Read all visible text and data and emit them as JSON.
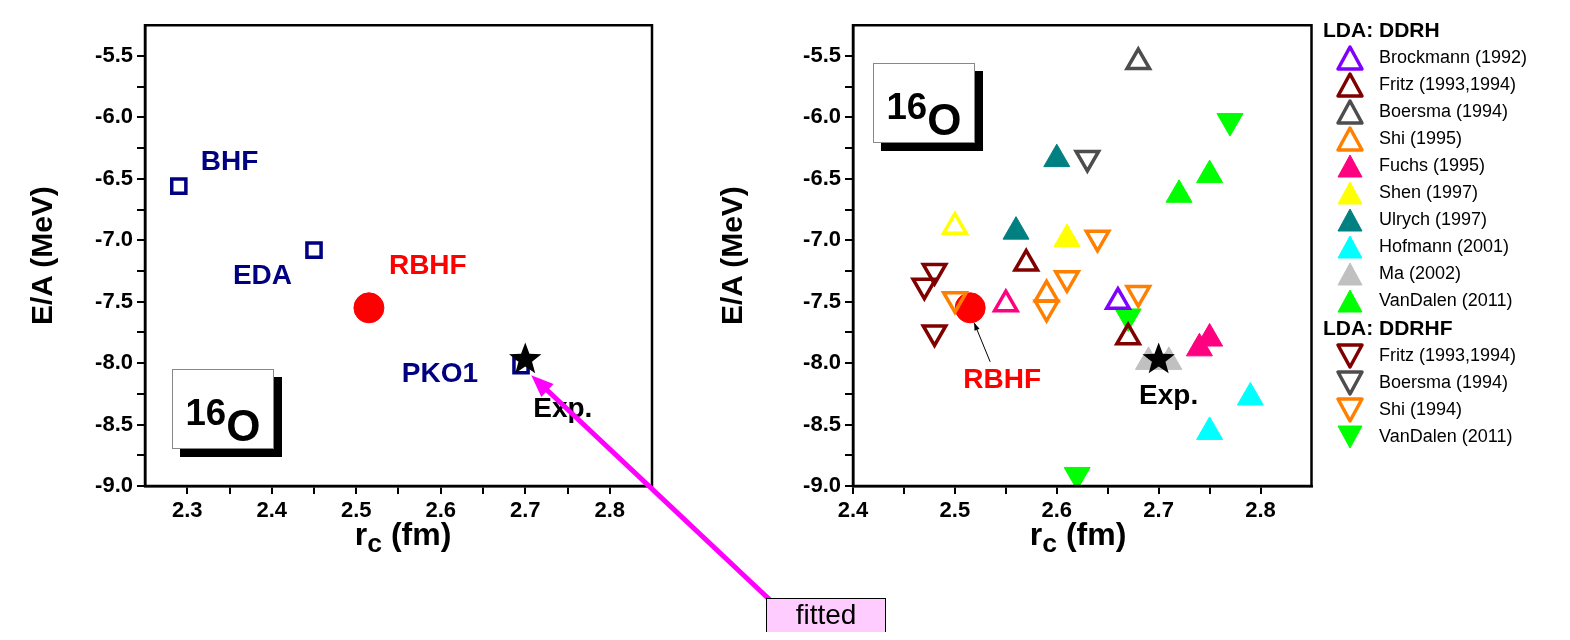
{
  "chart_data": [
    {
      "type": "scatter",
      "xlabel": "r$_{c}$ (fm)",
      "ylabel": "E/A (MeV)",
      "xlim": [
        2.25,
        2.85
      ],
      "xticks": [
        {
          "value": 2.3,
          "label": "2.3"
        },
        {
          "value": 2.35,
          "label": null
        },
        {
          "value": 2.4,
          "label": "2.4"
        },
        {
          "value": 2.45,
          "label": null
        },
        {
          "value": 2.5,
          "label": "2.5"
        },
        {
          "value": 2.55,
          "label": null
        },
        {
          "value": 2.6,
          "label": "2.6"
        },
        {
          "value": 2.65,
          "label": null
        },
        {
          "value": 2.7,
          "label": "2.7"
        },
        {
          "value": 2.75,
          "label": null
        },
        {
          "value": 2.8,
          "label": "2.8"
        }
      ],
      "ylim": [
        -9.0,
        -5.25
      ],
      "yticks": [
        {
          "value": -9.0,
          "label": "-9.0"
        },
        {
          "value": -8.75,
          "label": null
        },
        {
          "value": -8.5,
          "label": "-8.5"
        },
        {
          "value": -8.25,
          "label": null
        },
        {
          "value": -8.0,
          "label": "-8.0"
        },
        {
          "value": -7.75,
          "label": null
        },
        {
          "value": -7.5,
          "label": "-7.5"
        },
        {
          "value": -7.25,
          "label": null
        },
        {
          "value": -7.0,
          "label": "-7.0"
        },
        {
          "value": -6.75,
          "label": null
        },
        {
          "value": -6.5,
          "label": "-6.5"
        },
        {
          "value": -6.25,
          "label": null
        },
        {
          "value": -6.0,
          "label": "-6.0"
        },
        {
          "value": -5.75,
          "label": null
        },
        {
          "value": -5.5,
          "label": "-5.5"
        }
      ],
      "series": [
        {
          "color": "#000080",
          "marker": "square-open",
          "x": [
            2.29,
            2.45,
            2.695
          ],
          "values": [
            -6.56,
            -7.08,
            -8.02
          ]
        },
        {
          "color": "#ff0000",
          "marker": "circle",
          "x": [
            2.515
          ],
          "values": [
            -7.55
          ]
        },
        {
          "color": "#000000",
          "marker": "star",
          "x": [
            2.7
          ],
          "values": [
            -7.97
          ]
        }
      ],
      "annotations": [
        "$^{16}$O",
        {
          "text": "BHF",
          "x": 2.29,
          "y": -6.56
        },
        {
          "text": "EDA",
          "x": 2.45,
          "y": -7.08
        },
        {
          "text": "RBHF",
          "x": 2.515,
          "y": -7.55
        },
        {
          "text": "PKO1",
          "x": 2.695,
          "y": -8.02
        },
        {
          "text": "Exp.",
          "x": 2.7,
          "y": -7.97
        },
        "fitted"
      ]
    },
    {
      "type": "scatter",
      "xlabel": "r$_{c}$ (fm)",
      "ylabel": "E/A (MeV)",
      "xlim": [
        2.4,
        2.85
      ],
      "xticks": [
        {
          "value": 2.4,
          "label": "2.4"
        },
        {
          "value": 2.45,
          "label": null
        },
        {
          "value": 2.5,
          "label": "2.5"
        },
        {
          "value": 2.55,
          "label": null
        },
        {
          "value": 2.6,
          "label": "2.6"
        },
        {
          "value": 2.65,
          "label": null
        },
        {
          "value": 2.7,
          "label": "2.7"
        },
        {
          "value": 2.75,
          "label": null
        },
        {
          "value": 2.8,
          "label": "2.8"
        }
      ],
      "ylim": [
        -9.0,
        -5.25
      ],
      "yticks": [
        {
          "value": -9.0,
          "label": "-9.0"
        },
        {
          "value": -8.75,
          "label": null
        },
        {
          "value": -8.5,
          "label": "-8.5"
        },
        {
          "value": -8.25,
          "label": null
        },
        {
          "value": -8.0,
          "label": "-8.0"
        },
        {
          "value": -7.75,
          "label": null
        },
        {
          "value": -7.5,
          "label": "-7.5"
        },
        {
          "value": -7.25,
          "label": null
        },
        {
          "value": -7.0,
          "label": "-7.0"
        },
        {
          "value": -6.75,
          "label": null
        },
        {
          "value": -6.5,
          "label": "-6.5"
        },
        {
          "value": -6.25,
          "label": null
        },
        {
          "value": -6.0,
          "label": "-6.0"
        },
        {
          "value": -5.75,
          "label": null
        },
        {
          "value": -5.5,
          "label": "-5.5"
        }
      ],
      "legend": "right",
      "legend_title": [
        "LDA: DDRH",
        "LDA: DDRHF"
      ],
      "series": [
        {
          "name": "Brockmann (1992)",
          "color": "#8000ff",
          "marker": "triangle-open",
          "x": [
            2.66
          ],
          "values": [
            -7.5
          ]
        },
        {
          "name": "Fritz (1993,1994)",
          "color": "#800000",
          "marker": "triangle-open",
          "x": [
            2.57,
            2.67
          ],
          "values": [
            -7.19,
            -7.79
          ]
        },
        {
          "name": "Boersma (1994)",
          "color": "#4d4d4d",
          "marker": "triangle-open",
          "x": [
            2.68
          ],
          "values": [
            -5.55
          ]
        },
        {
          "name": "Shi (1995)",
          "color": "#ff8000",
          "marker": "triangle-open",
          "x": [
            2.59
          ],
          "values": [
            -7.44
          ]
        },
        {
          "name": "Fuchs (1995)",
          "color": "#ff0080",
          "marker": "triangle",
          "x": [
            2.74,
            2.75
          ],
          "values": [
            -7.88,
            -7.8
          ]
        },
        {
          "name": "Shen (1997)",
          "color": "#ffff00",
          "marker": "triangle",
          "x": [
            2.61
          ],
          "values": [
            -6.99
          ]
        },
        {
          "name": "Ulrych (1997)",
          "color": "#008080",
          "marker": "triangle",
          "x": [
            2.6,
            2.56
          ],
          "values": [
            -6.34,
            -6.93
          ]
        },
        {
          "name": "Hofmann (2001)",
          "color": "#00ffff",
          "marker": "triangle",
          "x": [
            2.75,
            2.79
          ],
          "values": [
            -8.56,
            -8.28
          ]
        },
        {
          "name": "Ma (2002)",
          "color": "#c0c0c0",
          "marker": "triangle",
          "x": [
            2.69,
            2.71
          ],
          "values": [
            -7.99,
            -7.99
          ]
        },
        {
          "name": "VanDalen (2011)",
          "color": "#00ff00",
          "marker": "triangle",
          "x": [
            2.72,
            2.75
          ],
          "values": [
            -6.63,
            -6.47
          ]
        },
        {
          "name": "Fritz (1993,1994)",
          "color": "#800000",
          "marker": "triangle-down-open",
          "x": [
            2.48,
            2.47,
            2.48
          ],
          "values": [
            -7.25,
            -7.37,
            -7.75
          ]
        },
        {
          "name": "Boersma (1994)",
          "color": "#4d4d4d",
          "marker": "triangle-down-open",
          "x": [
            2.63
          ],
          "values": [
            -6.33
          ]
        },
        {
          "name": "Shi (1994)",
          "color": "#ff8000",
          "marker": "triangle-down-open",
          "x": [
            2.5,
            2.59,
            2.61,
            2.64,
            2.68
          ],
          "values": [
            -7.48,
            -7.55,
            -7.31,
            -6.98,
            -7.43
          ]
        },
        {
          "name": "VanDalen (2011)",
          "color": "#00ff00",
          "marker": "triangle-down",
          "x": [
            2.77,
            2.62,
            2.67
          ],
          "values": [
            -6.03,
            -8.91,
            -7.62
          ]
        },
        {
          "color": "#ffff00",
          "marker": "triangle-open",
          "x": [
            2.5
          ],
          "values": [
            -6.89
          ]
        },
        {
          "color": "#ff0080",
          "marker": "triangle-open",
          "x": [
            2.55
          ],
          "values": [
            -7.52
          ]
        },
        {
          "color": "#ff0000",
          "marker": "circle",
          "x": [
            2.515
          ],
          "values": [
            -7.55
          ]
        },
        {
          "color": "#000000",
          "marker": "star",
          "x": [
            2.7
          ],
          "values": [
            -7.97
          ]
        }
      ],
      "annotations": [
        "$^{16}$O",
        {
          "text": "RBHF",
          "x": 2.515,
          "y": -7.55
        },
        {
          "text": "Exp.",
          "x": 2.7,
          "y": -7.97
        }
      ]
    }
  ]
}
